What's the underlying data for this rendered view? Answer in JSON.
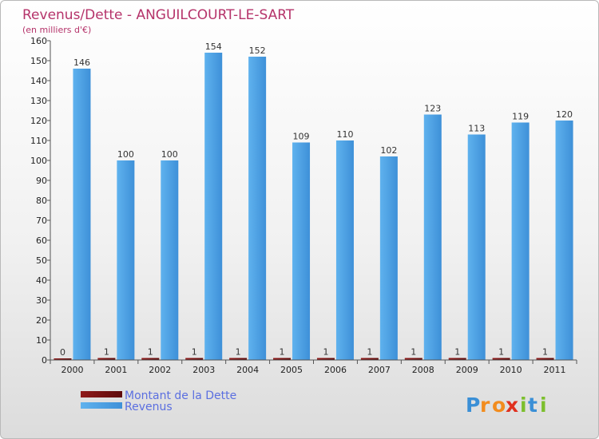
{
  "chart_data": {
    "type": "bar",
    "title": "Revenus/Dette - ANGUILCOURT-LE-SART",
    "subtitle": "(en milliers d'€)",
    "categories": [
      "2000",
      "2001",
      "2002",
      "2003",
      "2004",
      "2005",
      "2006",
      "2007",
      "2008",
      "2009",
      "2010",
      "2011"
    ],
    "series": [
      {
        "name": "Montant de la Dette",
        "color": "#7a1010",
        "values": [
          0,
          1,
          1,
          1,
          1,
          1,
          1,
          1,
          1,
          1,
          1,
          1
        ]
      },
      {
        "name": "Revenus",
        "color": "#4fa3e6",
        "values": [
          146,
          100,
          100,
          154,
          152,
          109,
          110,
          102,
          123,
          113,
          119,
          120
        ]
      }
    ],
    "ylim": [
      0,
      160
    ],
    "yticks": [
      0,
      10,
      20,
      30,
      40,
      50,
      60,
      70,
      80,
      90,
      100,
      110,
      120,
      130,
      140,
      150,
      160
    ],
    "grid": false,
    "legend_position": "bottom-left"
  },
  "brand": {
    "logo_letters": [
      "P",
      "r",
      "o",
      "x",
      "i",
      "t",
      "i"
    ]
  }
}
